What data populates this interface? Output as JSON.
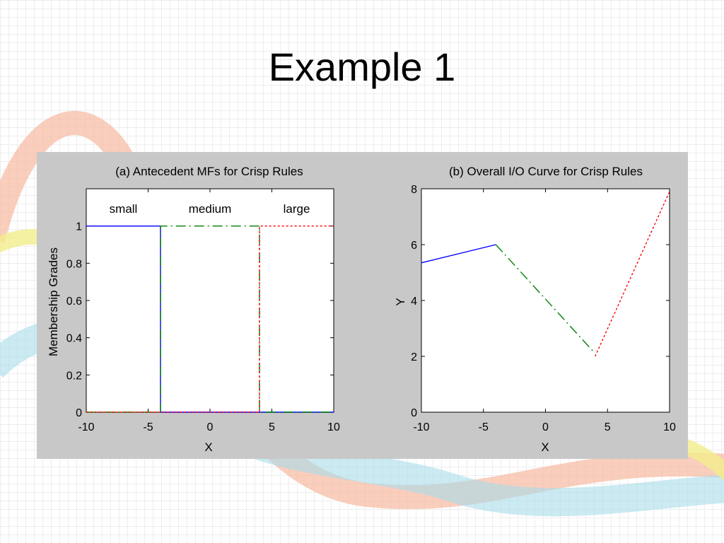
{
  "slide": {
    "title": "Example 1"
  },
  "chart_data": [
    {
      "type": "line",
      "title": "(a) Antecedent MFs for Crisp Rules",
      "xlabel": "X",
      "ylabel": "Membership Grades",
      "xlim": [
        -10,
        10
      ],
      "ylim": [
        0,
        1.2
      ],
      "xticks": [
        -10,
        -5,
        0,
        5,
        10
      ],
      "yticks": [
        0,
        0.2,
        0.4,
        0.6,
        0.8,
        1
      ],
      "xtick_labels": [
        "-10",
        "-5",
        "0",
        "5",
        "10"
      ],
      "ytick_labels": [
        "0",
        "0.2",
        "0.4",
        "0.6",
        "0.8",
        "1"
      ],
      "region_labels": [
        {
          "text": "small",
          "x": -7
        },
        {
          "text": "medium",
          "x": 0
        },
        {
          "text": "large",
          "x": 7
        }
      ],
      "series": [
        {
          "color": "#0000ff",
          "style": "solid",
          "points": [
            [
              -10,
              1
            ],
            [
              -4,
              1
            ],
            [
              -4,
              0
            ],
            [
              10,
              0
            ]
          ]
        },
        {
          "color": "#008000",
          "style": "dashdot",
          "points": [
            [
              -10,
              0
            ],
            [
              -4,
              0
            ],
            [
              -4,
              1
            ],
            [
              4,
              1
            ],
            [
              4,
              0
            ],
            [
              10,
              0
            ]
          ]
        },
        {
          "color": "#ff0000",
          "style": "dotted",
          "points": [
            [
              -10,
              0
            ],
            [
              4,
              0
            ],
            [
              4,
              1
            ],
            [
              10,
              1
            ]
          ]
        }
      ]
    },
    {
      "type": "line",
      "title": "(b) Overall I/O Curve for Crisp Rules",
      "xlabel": "X",
      "ylabel": "Y",
      "xlim": [
        -10,
        10
      ],
      "ylim": [
        0,
        8
      ],
      "xticks": [
        -10,
        -5,
        0,
        5,
        10
      ],
      "yticks": [
        0,
        2,
        4,
        6,
        8
      ],
      "xtick_labels": [
        "-10",
        "-5",
        "0",
        "5",
        "10"
      ],
      "ytick_labels": [
        "0",
        "2",
        "4",
        "6",
        "8"
      ],
      "series": [
        {
          "color": "#0000ff",
          "style": "solid",
          "points": [
            [
              -10,
              5.35
            ],
            [
              -4,
              6
            ]
          ]
        },
        {
          "color": "#008000",
          "style": "dashdot",
          "points": [
            [
              -4,
              6
            ],
            [
              3.8,
              2.2
            ]
          ]
        },
        {
          "color": "#ff0000",
          "style": "dotted",
          "points": [
            [
              4,
              2
            ],
            [
              10,
              7.9
            ]
          ]
        }
      ]
    }
  ]
}
